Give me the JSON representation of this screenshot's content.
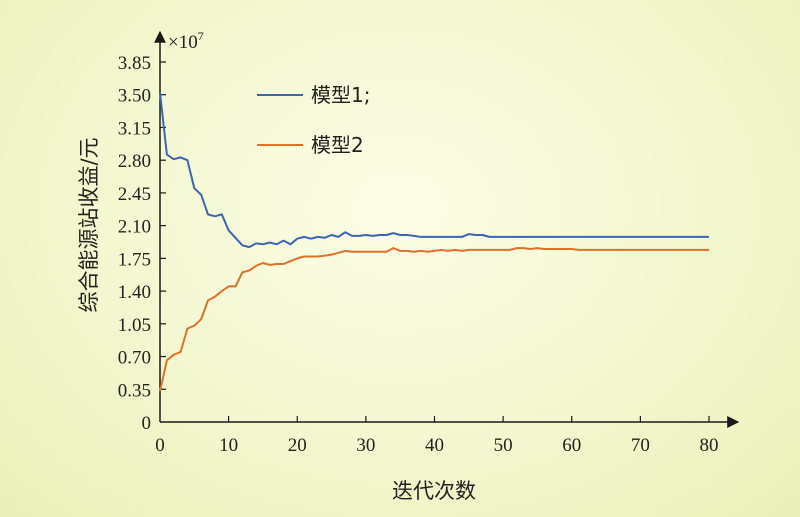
{
  "chart_data": {
    "type": "line",
    "xlabel": "迭代次数",
    "ylabel": "综合能源站收益/元",
    "y_multiplier": "×10",
    "y_multiplier_exp": "7",
    "xlim": [
      0,
      80
    ],
    "ylim": [
      0,
      3.85
    ],
    "x_ticks": [
      "0",
      "10",
      "20",
      "30",
      "40",
      "50",
      "60",
      "70",
      "80"
    ],
    "y_ticks": [
      "0",
      "0.35",
      "0.70",
      "1.05",
      "1.40",
      "1.75",
      "2.10",
      "2.45",
      "2.80",
      "3.15",
      "3.50",
      "3.85"
    ],
    "grid": false,
    "legend_position": "top-center",
    "series": [
      {
        "name": "模型1;",
        "color": "#3b66b3",
        "x": [
          0,
          1,
          2,
          3,
          4,
          5,
          6,
          7,
          8,
          9,
          10,
          11,
          12,
          13,
          14,
          15,
          16,
          17,
          18,
          19,
          20,
          21,
          22,
          23,
          24,
          25,
          26,
          27,
          28,
          29,
          30,
          31,
          32,
          33,
          34,
          35,
          36,
          37,
          38,
          39,
          40,
          41,
          42,
          43,
          44,
          45,
          46,
          47,
          48,
          50,
          60,
          70,
          80
        ],
        "y": [
          3.52,
          2.86,
          2.81,
          2.83,
          2.8,
          2.5,
          2.43,
          2.22,
          2.2,
          2.22,
          2.05,
          1.97,
          1.89,
          1.87,
          1.91,
          1.9,
          1.92,
          1.9,
          1.94,
          1.9,
          1.96,
          1.98,
          1.96,
          1.98,
          1.97,
          2.0,
          1.98,
          2.03,
          1.99,
          1.99,
          2.0,
          1.99,
          2.0,
          2.0,
          2.02,
          2.0,
          2.0,
          1.99,
          1.98,
          1.98,
          1.98,
          1.98,
          1.98,
          1.98,
          1.98,
          2.01,
          2.0,
          2.0,
          1.98,
          1.98,
          1.98,
          1.98,
          1.98
        ]
      },
      {
        "name": "模型2",
        "color": "#e0712b",
        "x": [
          0,
          1,
          2,
          3,
          4,
          5,
          6,
          7,
          8,
          9,
          10,
          11,
          12,
          13,
          14,
          15,
          16,
          17,
          18,
          19,
          20,
          21,
          22,
          23,
          24,
          25,
          26,
          27,
          28,
          29,
          30,
          31,
          32,
          33,
          34,
          35,
          36,
          37,
          38,
          39,
          40,
          41,
          42,
          43,
          44,
          45,
          46,
          47,
          48,
          49,
          50,
          51,
          52,
          53,
          54,
          55,
          56,
          57,
          58,
          59,
          60,
          61,
          62,
          70,
          80
        ],
        "y": [
          0.33,
          0.66,
          0.72,
          0.75,
          1.0,
          1.03,
          1.1,
          1.3,
          1.34,
          1.4,
          1.45,
          1.45,
          1.6,
          1.62,
          1.67,
          1.7,
          1.68,
          1.69,
          1.69,
          1.72,
          1.75,
          1.77,
          1.77,
          1.77,
          1.78,
          1.79,
          1.81,
          1.83,
          1.82,
          1.82,
          1.82,
          1.82,
          1.82,
          1.82,
          1.86,
          1.83,
          1.83,
          1.82,
          1.83,
          1.82,
          1.83,
          1.84,
          1.83,
          1.84,
          1.83,
          1.84,
          1.84,
          1.84,
          1.84,
          1.84,
          1.84,
          1.84,
          1.86,
          1.86,
          1.85,
          1.86,
          1.85,
          1.85,
          1.85,
          1.85,
          1.85,
          1.84,
          1.84,
          1.84,
          1.84
        ]
      }
    ]
  }
}
